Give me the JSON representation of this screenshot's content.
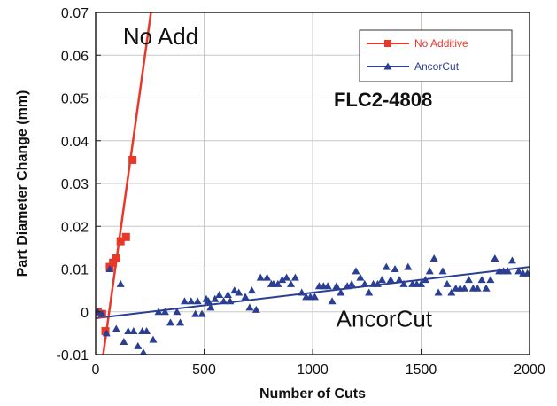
{
  "chart_data": {
    "type": "scatter",
    "xlabel": "Number of Cuts",
    "ylabel": "Part Diameter Change (mm)",
    "xlim": [
      0,
      2000
    ],
    "ylim": [
      -0.01,
      0.07
    ],
    "xticks": [
      0,
      500,
      1000,
      1500,
      2000
    ],
    "yticks": [
      -0.01,
      0,
      0.01,
      0.02,
      0.03,
      0.04,
      0.05,
      0.06,
      0.07
    ],
    "xtick_labels": [
      "0",
      "500",
      "1000",
      "1500",
      "2000"
    ],
    "ytick_labels": [
      "-0.01",
      "0",
      "0.01",
      "0.02",
      "0.03",
      "0.04",
      "0.05",
      "0.06",
      "0.07"
    ],
    "grid": true,
    "legend_position": "top-right",
    "annotations": [
      {
        "text": "No Add",
        "x": 300,
        "y": 0.0625,
        "weight": "normal",
        "size": 26
      },
      {
        "text": "FLC2-4808",
        "x": 1325,
        "y": 0.048,
        "weight": "bold",
        "size": 22
      },
      {
        "text": "AncorCut",
        "x": 1330,
        "y": -0.0035,
        "weight": "normal",
        "size": 26
      }
    ],
    "series": [
      {
        "name": "No Additive",
        "marker": "square",
        "color": "#e8382a",
        "points": [
          [
            10,
            0
          ],
          [
            30,
            -0.0005
          ],
          [
            45,
            -0.0045
          ],
          [
            65,
            0.0105
          ],
          [
            80,
            0.0115
          ],
          [
            95,
            0.0125
          ],
          [
            115,
            0.0165
          ],
          [
            140,
            0.0175
          ],
          [
            170,
            0.0355
          ]
        ],
        "fit": [
          [
            35,
            -0.01
          ],
          [
            255,
            0.07
          ]
        ]
      },
      {
        "name": "AncorCut",
        "marker": "triangle",
        "color": "#2a3f94",
        "points": [
          [
            10,
            0
          ],
          [
            30,
            -0.0005
          ],
          [
            50,
            -0.005
          ],
          [
            65,
            0.01
          ],
          [
            95,
            -0.004
          ],
          [
            115,
            0.0065
          ],
          [
            130,
            -0.007
          ],
          [
            150,
            -0.0045
          ],
          [
            175,
            -0.0045
          ],
          [
            195,
            -0.008
          ],
          [
            215,
            -0.0045
          ],
          [
            220,
            -0.0095
          ],
          [
            235,
            -0.0045
          ],
          [
            265,
            -0.0065
          ],
          [
            290,
            0
          ],
          [
            320,
            0
          ],
          [
            345,
            -0.0025
          ],
          [
            375,
            0
          ],
          [
            390,
            -0.0025
          ],
          [
            410,
            0.0025
          ],
          [
            440,
            0.0025
          ],
          [
            460,
            -0.0005
          ],
          [
            470,
            0.0025
          ],
          [
            490,
            -0.0005
          ],
          [
            510,
            0.003
          ],
          [
            520,
            0.0025
          ],
          [
            530,
            0.001
          ],
          [
            550,
            0.003
          ],
          [
            570,
            0.004
          ],
          [
            590,
            0.0025
          ],
          [
            610,
            0.004
          ],
          [
            620,
            0.0025
          ],
          [
            640,
            0.005
          ],
          [
            660,
            0.0045
          ],
          [
            690,
            0.0035
          ],
          [
            710,
            0.001
          ],
          [
            720,
            0.005
          ],
          [
            740,
            0.0005
          ],
          [
            760,
            0.008
          ],
          [
            790,
            0.008
          ],
          [
            810,
            0.0065
          ],
          [
            820,
            0.0065
          ],
          [
            840,
            0.0065
          ],
          [
            860,
            0.0075
          ],
          [
            880,
            0.008
          ],
          [
            900,
            0.0065
          ],
          [
            920,
            0.008
          ],
          [
            950,
            0.0045
          ],
          [
            970,
            0.0035
          ],
          [
            990,
            0.0035
          ],
          [
            1010,
            0.0035
          ],
          [
            1030,
            0.006
          ],
          [
            1050,
            0.006
          ],
          [
            1070,
            0.006
          ],
          [
            1090,
            0.0025
          ],
          [
            1110,
            0.006
          ],
          [
            1130,
            0.0045
          ],
          [
            1160,
            0.006
          ],
          [
            1180,
            0.0065
          ],
          [
            1200,
            0.0095
          ],
          [
            1220,
            0.008
          ],
          [
            1240,
            0.0065
          ],
          [
            1260,
            0.0045
          ],
          [
            1280,
            0.0065
          ],
          [
            1300,
            0.0065
          ],
          [
            1320,
            0.0075
          ],
          [
            1340,
            0.0105
          ],
          [
            1360,
            0.0075
          ],
          [
            1380,
            0.01
          ],
          [
            1400,
            0.0075
          ],
          [
            1420,
            0.0065
          ],
          [
            1440,
            0.0105
          ],
          [
            1460,
            0.0065
          ],
          [
            1480,
            0.0065
          ],
          [
            1500,
            0.0065
          ],
          [
            1520,
            0.0075
          ],
          [
            1540,
            0.0095
          ],
          [
            1560,
            0.0125
          ],
          [
            1580,
            0.0045
          ],
          [
            1600,
            0.0095
          ],
          [
            1620,
            0.0065
          ],
          [
            1640,
            0.0045
          ],
          [
            1660,
            0.0055
          ],
          [
            1680,
            0.0055
          ],
          [
            1700,
            0.0055
          ],
          [
            1720,
            0.0075
          ],
          [
            1740,
            0.0055
          ],
          [
            1760,
            0.0055
          ],
          [
            1780,
            0.0075
          ],
          [
            1800,
            0.0055
          ],
          [
            1820,
            0.0075
          ],
          [
            1840,
            0.0125
          ],
          [
            1860,
            0.0095
          ],
          [
            1880,
            0.0095
          ],
          [
            1900,
            0.0095
          ],
          [
            1920,
            0.012
          ],
          [
            1950,
            0.0095
          ],
          [
            1970,
            0.009
          ],
          [
            1990,
            0.009
          ]
        ],
        "fit": [
          [
            0,
            -0.0015
          ],
          [
            2000,
            0.0105
          ]
        ]
      }
    ]
  }
}
